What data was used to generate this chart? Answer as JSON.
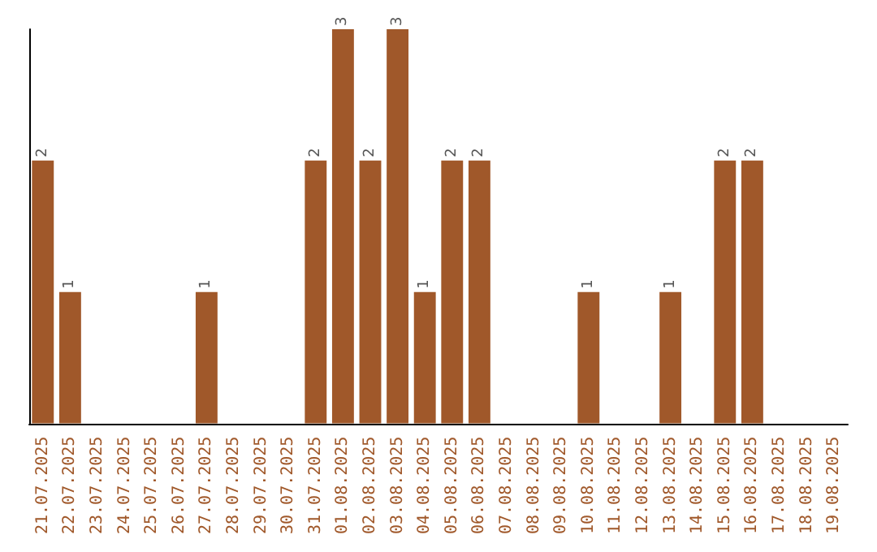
{
  "chart_data": {
    "type": "bar",
    "categories": [
      "21.07.2025",
      "22.07.2025",
      "23.07.2025",
      "24.07.2025",
      "25.07.2025",
      "26.07.2025",
      "27.07.2025",
      "28.07.2025",
      "29.07.2025",
      "30.07.2025",
      "31.07.2025",
      "01.08.2025",
      "02.08.2025",
      "03.08.2025",
      "04.08.2025",
      "05.08.2025",
      "06.08.2025",
      "07.08.2025",
      "08.08.2025",
      "09.08.2025",
      "10.08.2025",
      "11.08.2025",
      "12.08.2025",
      "13.08.2025",
      "14.08.2025",
      "15.08.2025",
      "16.08.2025",
      "17.08.2025",
      "18.08.2025",
      "19.08.2025"
    ],
    "values": [
      2,
      1,
      0,
      0,
      0,
      0,
      1,
      0,
      0,
      0,
      2,
      3,
      2,
      3,
      1,
      2,
      2,
      0,
      0,
      0,
      1,
      0,
      0,
      1,
      0,
      2,
      2,
      0,
      0,
      0
    ],
    "value_labels": [
      "2",
      "1",
      null,
      null,
      null,
      null,
      "1",
      null,
      null,
      null,
      "2",
      "3",
      "2",
      "3",
      "1",
      "2",
      "2",
      null,
      null,
      null,
      "1",
      null,
      null,
      "1",
      null,
      "2",
      "2",
      null,
      null,
      null
    ],
    "color": "#a0582a",
    "tick_labels": "x"
  }
}
